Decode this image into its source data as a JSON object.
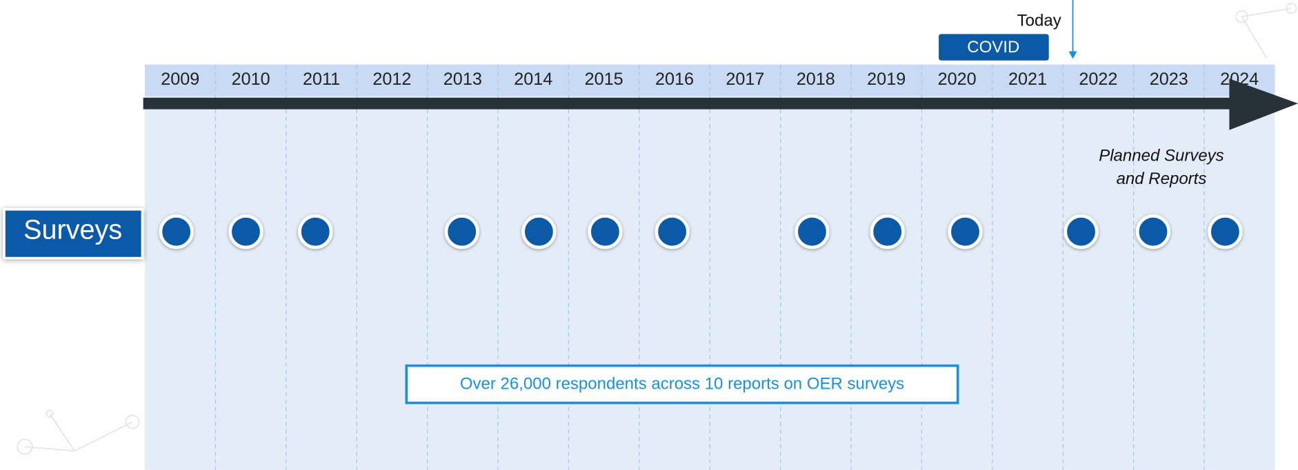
{
  "timeline": {
    "years": [
      "2009",
      "2010",
      "2011",
      "2012",
      "2013",
      "2014",
      "2015",
      "2016",
      "2017",
      "2018",
      "2019",
      "2020",
      "2021",
      "2022",
      "2023",
      "2024"
    ],
    "today_label": "Today",
    "covid_label": "COVID",
    "planned_note": [
      "Planned Surveys",
      "and Reports"
    ],
    "row_label": "Surveys",
    "callout": "Over 26,000 respondents across 10 reports on OER surveys"
  }
}
